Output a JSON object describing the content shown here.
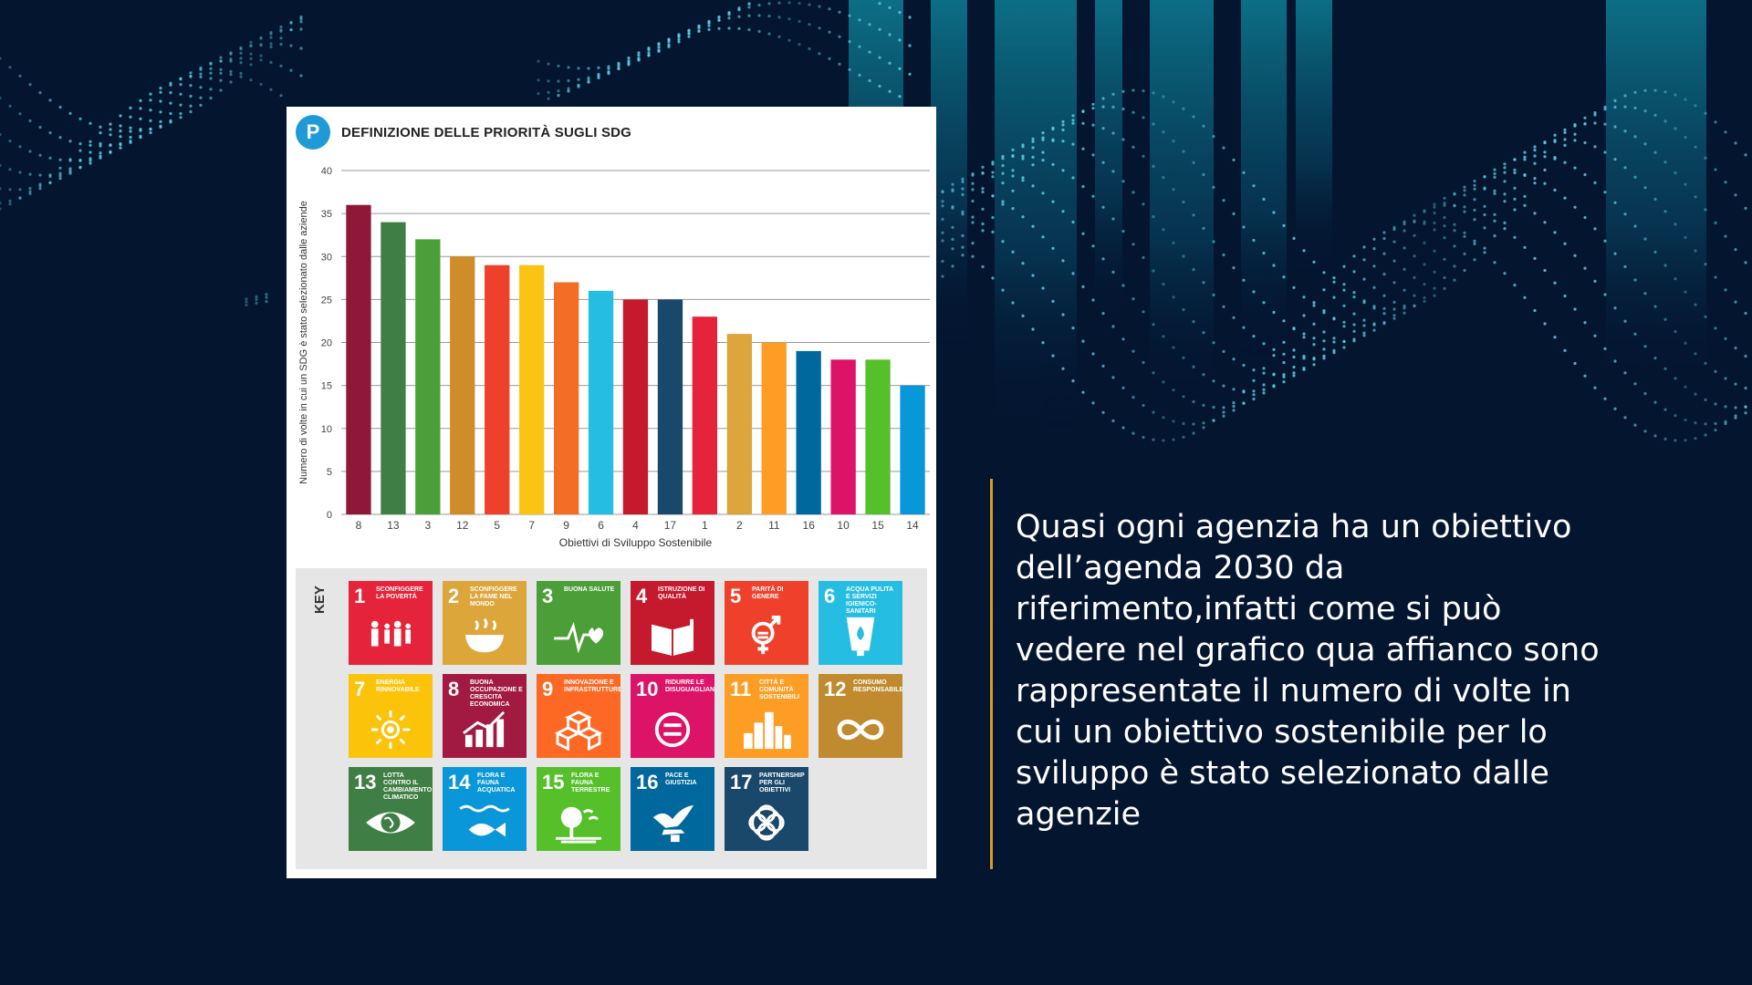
{
  "slide": {
    "text": "Quasi ogni agenzia ha un obiettivo dell’agenda 2030 da riferimento,infatti come si può vedere nel grafico qua affianco sono rappresentate il numero di volte in cui un obiettivo sostenibile per lo sviluppo è stato selezionato dalle agenzie",
    "background_color": "#041530",
    "accent_color": "#d99a2b"
  },
  "chart_data": {
    "type": "bar",
    "title": "DEFINIZIONE DELLE PRIORITÀ SUGLI SDG",
    "logo_text": "P",
    "xlabel": "Obiettivi di Sviluppo Sostenibile",
    "ylabel": "Numero di volte in cui un SDG è stato selezionato dalle aziende",
    "ylim": [
      0,
      40
    ],
    "yticks": [
      0,
      5,
      10,
      15,
      20,
      25,
      30,
      35,
      40
    ],
    "grid": true,
    "categories": [
      "8",
      "13",
      "3",
      "12",
      "5",
      "7",
      "9",
      "6",
      "4",
      "17",
      "1",
      "2",
      "11",
      "16",
      "10",
      "15",
      "14"
    ],
    "values": [
      36,
      34,
      32,
      30,
      29,
      29,
      27,
      26,
      25,
      25,
      23,
      21,
      20,
      19,
      18,
      18,
      15
    ],
    "bar_colors": [
      "#8f1838",
      "#3f7e44",
      "#4c9f38",
      "#cf8d2a",
      "#ef402b",
      "#fbc412",
      "#f36d25",
      "#26bde2",
      "#c5192d",
      "#19486a",
      "#e5243b",
      "#dda63a",
      "#fd9d24",
      "#00689d",
      "#dd1367",
      "#56c02b",
      "#0a97d9"
    ]
  },
  "key": {
    "label": "KEY",
    "tiles": [
      {
        "num": "1",
        "name": "Sconfiggere la povertà",
        "color": "#e5243b",
        "icon": "family-icon"
      },
      {
        "num": "2",
        "name": "Sconfiggere la fame nel mondo",
        "color": "#dda63a",
        "icon": "bowl-icon"
      },
      {
        "num": "3",
        "name": "Buona salute",
        "color": "#4c9f38",
        "icon": "heartbeat-icon"
      },
      {
        "num": "4",
        "name": "Istruzione di qualità",
        "color": "#c5192d",
        "icon": "book-icon"
      },
      {
        "num": "5",
        "name": "Parità di genere",
        "color": "#ef402b",
        "icon": "gender-icon"
      },
      {
        "num": "6",
        "name": "Acqua pulita e servizi igienico-sanitari",
        "color": "#26bde2",
        "icon": "water-drop-icon"
      },
      {
        "num": "7",
        "name": "Energia rinnovabile",
        "color": "#fcc30b",
        "icon": "sun-icon"
      },
      {
        "num": "8",
        "name": "Buona occupazione e crescita economica",
        "color": "#a21942",
        "icon": "growth-chart-icon"
      },
      {
        "num": "9",
        "name": "Innovazione e infrastrutture",
        "color": "#fd6925",
        "icon": "cubes-icon"
      },
      {
        "num": "10",
        "name": "Ridurre le disuguaglianze",
        "color": "#dd1367",
        "icon": "equal-icon"
      },
      {
        "num": "11",
        "name": "Città e comunità sostenibili",
        "color": "#fd9d24",
        "icon": "city-icon"
      },
      {
        "num": "12",
        "name": "Consumo responsabile",
        "color": "#bf8b2e",
        "icon": "infinity-icon"
      },
      {
        "num": "13",
        "name": "Lotta contro il cambiamento climatico",
        "color": "#3f7e44",
        "icon": "eye-globe-icon"
      },
      {
        "num": "14",
        "name": "Flora e fauna acquatica",
        "color": "#0a97d9",
        "icon": "fish-icon"
      },
      {
        "num": "15",
        "name": "Flora e fauna terrestre",
        "color": "#56c02b",
        "icon": "tree-icon"
      },
      {
        "num": "16",
        "name": "Pace e giustizia",
        "color": "#00689d",
        "icon": "dove-icon"
      },
      {
        "num": "17",
        "name": "Partnership per gli obiettivi",
        "color": "#19486a",
        "icon": "rings-icon"
      }
    ]
  }
}
